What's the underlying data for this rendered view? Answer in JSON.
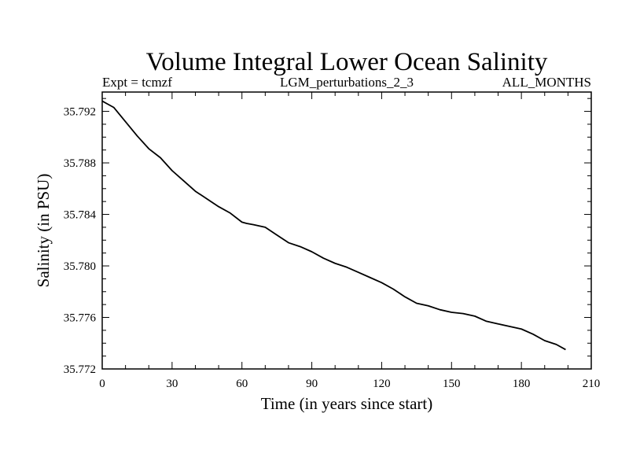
{
  "chart_data": {
    "type": "line",
    "title": "Volume Integral Lower Ocean Salinity",
    "subtitle_left": "Expt = tcmzf",
    "subtitle_center": "LGM_perturbations_2_3",
    "subtitle_right": "ALL_MONTHS",
    "xlabel": "Time (in years since start)",
    "ylabel": "Salinity (in PSU)",
    "xlim": [
      0,
      210
    ],
    "ylim": [
      35.772,
      35.7935
    ],
    "xticks": [
      0,
      30,
      60,
      90,
      120,
      150,
      180,
      210
    ],
    "xtick_labels": [
      "0",
      "30",
      "60",
      "90",
      "120",
      "150",
      "180",
      "210"
    ],
    "yticks": [
      35.772,
      35.776,
      35.78,
      35.784,
      35.788,
      35.792
    ],
    "ytick_labels": [
      "35.772",
      "35.776",
      "35.780",
      "35.784",
      "35.788",
      "35.792"
    ],
    "grid": false,
    "series": [
      {
        "name": "salinity",
        "color": "#000000",
        "x": [
          0,
          2,
          5,
          10,
          15,
          20,
          25,
          30,
          35,
          40,
          45,
          50,
          55,
          60,
          62,
          65,
          70,
          75,
          80,
          85,
          90,
          95,
          100,
          105,
          110,
          115,
          120,
          125,
          130,
          135,
          140,
          145,
          150,
          155,
          160,
          165,
          170,
          175,
          180,
          185,
          190,
          195,
          199
        ],
        "values": [
          35.7928,
          35.7926,
          35.7923,
          35.7912,
          35.7901,
          35.7891,
          35.7884,
          35.7874,
          35.7866,
          35.7858,
          35.7852,
          35.7846,
          35.7841,
          35.7834,
          35.7833,
          35.7832,
          35.783,
          35.7824,
          35.7818,
          35.7815,
          35.7811,
          35.7806,
          35.7802,
          35.7799,
          35.7795,
          35.7791,
          35.7787,
          35.7782,
          35.7776,
          35.7771,
          35.7769,
          35.7766,
          35.7764,
          35.7763,
          35.7761,
          35.7757,
          35.7755,
          35.7753,
          35.7751,
          35.7747,
          35.7742,
          35.7739,
          35.7735
        ]
      }
    ]
  }
}
